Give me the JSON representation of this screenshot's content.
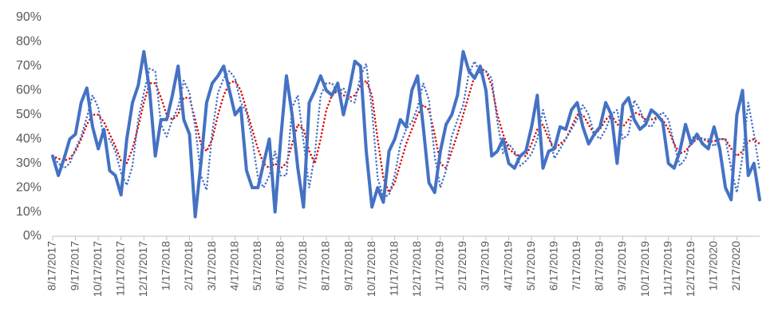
{
  "chart_data": {
    "type": "line",
    "categories": [
      "8/17/2017",
      null,
      null,
      null,
      "9/17/2017",
      null,
      null,
      null,
      "10/17/2017",
      null,
      null,
      null,
      "11/17/2017",
      null,
      null,
      null,
      "12/17/2017",
      null,
      null,
      null,
      "1/17/2018",
      null,
      null,
      null,
      "2/17/2018",
      null,
      null,
      null,
      "3/17/2018",
      null,
      null,
      null,
      "4/17/2018",
      null,
      null,
      null,
      "5/17/2018",
      null,
      null,
      null,
      "6/17/2018",
      null,
      null,
      null,
      "7/17/2018",
      null,
      null,
      null,
      "8/17/2018",
      null,
      null,
      null,
      "9/17/2018",
      null,
      null,
      null,
      "10/17/2018",
      null,
      null,
      null,
      "11/17/2018",
      null,
      null,
      null,
      "12/17/2018",
      null,
      null,
      null,
      "1/17/2019",
      null,
      null,
      null,
      "2/17/2019",
      null,
      null,
      null,
      "3/17/2019",
      null,
      null,
      null,
      "4/17/2019",
      null,
      null,
      null,
      "5/17/2019",
      null,
      null,
      null,
      "6/17/2019",
      null,
      null,
      null,
      "7/17/2019",
      null,
      null,
      null,
      "8/17/2019",
      null,
      null,
      null,
      "9/17/2019",
      null,
      null,
      null,
      "10/17/2019",
      null,
      null,
      null,
      "11/17/2019",
      null,
      null,
      null,
      "12/17/2019",
      null,
      null,
      null,
      "1/17/2020",
      null,
      null,
      null,
      "2/17/2020",
      null,
      null,
      null,
      null
    ],
    "series": [
      {
        "color": "#4472c4",
        "style": "solid",
        "values": [
          33,
          25,
          32,
          40,
          42,
          55,
          61,
          45,
          36,
          44,
          27,
          25,
          17,
          40,
          55,
          62,
          76,
          60,
          33,
          48,
          48,
          58,
          70,
          48,
          42,
          8,
          30,
          55,
          63,
          66,
          70,
          60,
          50,
          53,
          27,
          20,
          20,
          30,
          40,
          10,
          40,
          66,
          50,
          28,
          12,
          55,
          60,
          66,
          60,
          58,
          63,
          50,
          60,
          72,
          70,
          35,
          12,
          20,
          14,
          35,
          40,
          48,
          45,
          60,
          66,
          45,
          22,
          18,
          35,
          46,
          50,
          58,
          76,
          68,
          65,
          70,
          60,
          33,
          35,
          40,
          30,
          28,
          33,
          35,
          45,
          58,
          28,
          35,
          36,
          45,
          44,
          52,
          55,
          45,
          38,
          42,
          45,
          55,
          50,
          30,
          54,
          57,
          48,
          44,
          46,
          52,
          50,
          47,
          30,
          28,
          35,
          46,
          38,
          42,
          38,
          36,
          45,
          36,
          20,
          15,
          50,
          60,
          25,
          30,
          15
        ]
      },
      {
        "color": "#4472c4",
        "style": "dotted",
        "values": [
          33,
          30,
          28,
          30,
          36,
          41,
          49,
          58,
          53,
          40,
          40,
          35,
          26,
          21,
          29,
          48,
          59,
          69,
          68,
          46,
          41,
          48,
          53,
          64,
          59,
          45,
          25,
          19,
          43,
          59,
          65,
          68,
          65,
          55,
          51,
          40,
          24,
          20,
          25,
          35,
          25,
          25,
          53,
          58,
          39,
          20,
          34,
          58,
          63,
          63,
          59,
          61,
          56,
          55,
          66,
          71,
          52,
          24,
          16,
          17,
          25,
          38,
          44,
          47,
          53,
          63,
          56,
          33,
          20,
          27,
          41,
          48,
          54,
          67,
          72,
          67,
          68,
          65,
          47,
          34,
          38,
          35,
          29,
          31,
          34,
          40,
          52,
          43,
          32,
          36,
          40,
          44,
          48,
          54,
          50,
          42,
          40,
          44,
          50,
          52,
          40,
          42,
          56,
          52,
          46,
          45,
          49,
          51,
          48,
          38,
          29,
          32,
          40,
          42,
          40,
          40,
          37,
          40,
          40,
          28,
          18,
          33,
          55,
          42,
          27
        ]
      },
      {
        "color": "#e00000",
        "style": "dotted",
        "values": [
          33,
          32,
          31,
          32,
          35,
          40,
          46,
          50,
          50,
          47,
          42,
          37,
          31,
          30,
          36,
          45,
          55,
          63,
          63,
          57,
          50,
          48,
          50,
          57,
          57,
          48,
          38,
          35,
          40,
          50,
          58,
          63,
          64,
          60,
          52,
          44,
          36,
          30,
          28,
          30,
          28,
          30,
          38,
          46,
          44,
          35,
          30,
          40,
          52,
          58,
          60,
          58,
          57,
          58,
          62,
          64,
          58,
          40,
          24,
          18,
          22,
          30,
          38,
          44,
          50,
          54,
          52,
          42,
          30,
          28,
          35,
          42,
          50,
          58,
          66,
          69,
          68,
          62,
          50,
          42,
          36,
          34,
          33,
          33,
          38,
          44,
          46,
          40,
          36,
          38,
          40,
          45,
          50,
          50,
          46,
          42,
          44,
          48,
          50,
          46,
          45,
          48,
          51,
          50,
          48,
          48,
          49,
          48,
          44,
          38,
          34,
          35,
          38,
          40,
          40,
          39,
          39,
          40,
          40,
          36,
          33,
          35,
          39,
          40,
          38
        ]
      }
    ],
    "ylim": [
      0,
      90
    ],
    "yticks": [
      {
        "value": 0,
        "label": "0%"
      },
      {
        "value": 10,
        "label": "10%"
      },
      {
        "value": 20,
        "label": "20%"
      },
      {
        "value": 30,
        "label": "30%"
      },
      {
        "value": 40,
        "label": "40%"
      },
      {
        "value": 50,
        "label": "50%"
      },
      {
        "value": 60,
        "label": "60%"
      },
      {
        "value": 70,
        "label": "70%"
      },
      {
        "value": 80,
        "label": "80%"
      },
      {
        "value": 90,
        "label": "90%"
      }
    ],
    "grid": false
  }
}
